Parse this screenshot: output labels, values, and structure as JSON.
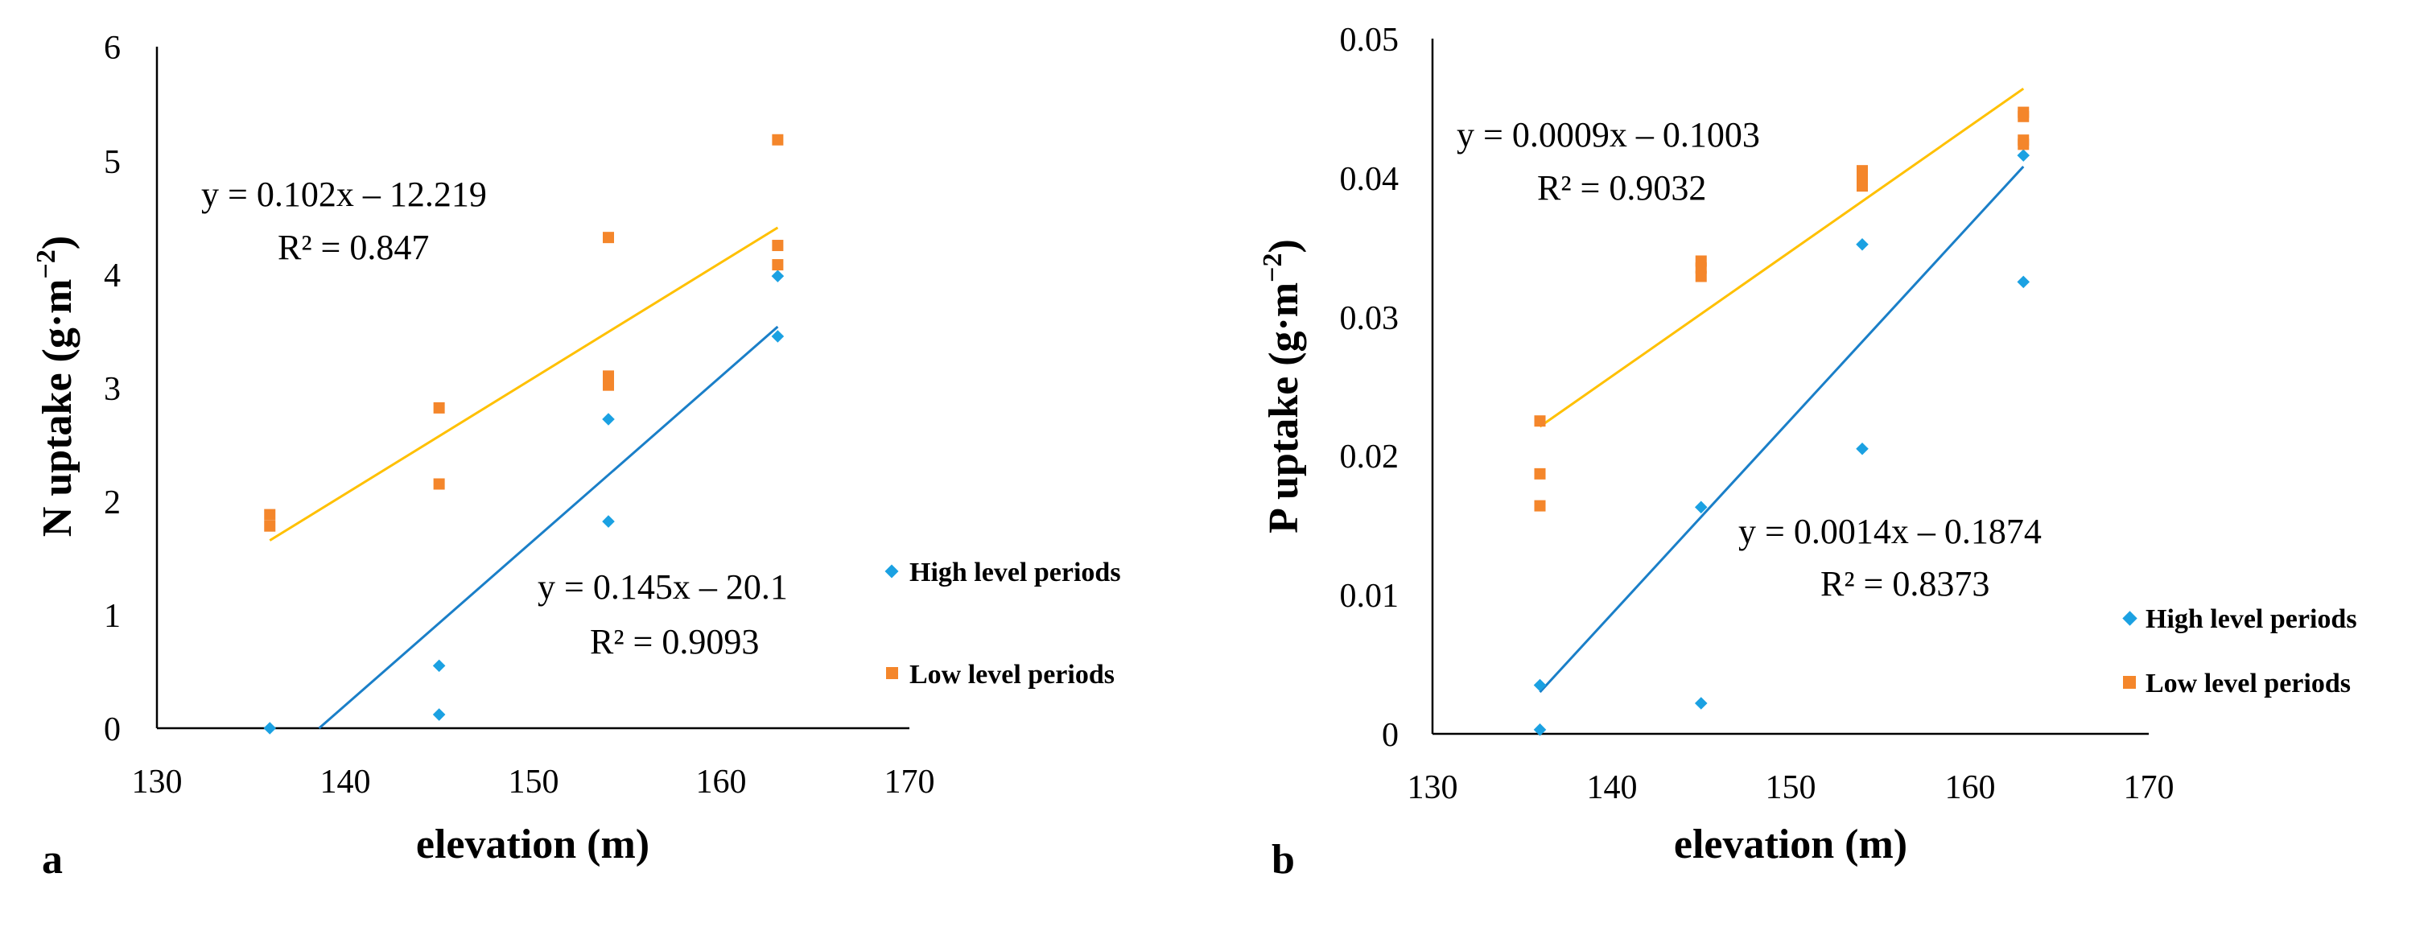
{
  "chart_data": [
    {
      "type": "scatter",
      "panel_label": "a",
      "xlabel": "elevation (m)",
      "ylabel": "N uptake (g·m",
      "ylabel_sup": "−2",
      "ylabel_close": ")",
      "xlim": [
        130,
        170
      ],
      "ylim": [
        0,
        6
      ],
      "xticks": [
        130,
        140,
        150,
        160,
        170
      ],
      "yticks": [
        0,
        1,
        2,
        3,
        4,
        5,
        6
      ],
      "ytick_labels": [
        "0",
        "1",
        "2",
        "3",
        "4",
        "5",
        "6"
      ],
      "legend_position": "right",
      "series": [
        {
          "name": "High level periods",
          "color": "#1ba1e2",
          "marker": "diamond",
          "points": [
            [
              136,
              0.0
            ],
            [
              145,
              0.55
            ],
            [
              145,
              0.12
            ],
            [
              154,
              2.72
            ],
            [
              154,
              1.82
            ],
            [
              163,
              3.98
            ],
            [
              163,
              3.45
            ]
          ],
          "trend": {
            "slope": 0.145,
            "intercept": -20.1,
            "x_from": 136,
            "x_to": 163
          },
          "equation": "y = 0.145x – 20.1",
          "r2": "R² = 0.9093"
        },
        {
          "name": "Low level periods",
          "color": "#f4862b",
          "marker": "square",
          "points": [
            [
              136,
              1.88
            ],
            [
              136,
              1.78
            ],
            [
              145,
              2.82
            ],
            [
              145,
              2.15
            ],
            [
              154,
              4.32
            ],
            [
              154,
              3.1
            ],
            [
              154,
              3.02
            ],
            [
              163,
              5.18
            ],
            [
              163,
              4.25
            ],
            [
              163,
              4.08
            ]
          ],
          "trend": {
            "slope": 0.102,
            "intercept": -12.219,
            "x_from": 136,
            "x_to": 163
          },
          "trend_color": "#ffc000",
          "equation": "y = 0.102x – 12.219",
          "r2": "R² = 0.847"
        }
      ]
    },
    {
      "type": "scatter",
      "panel_label": "b",
      "xlabel": "elevation (m)",
      "ylabel": "P uptake (g·m",
      "ylabel_sup": "−2",
      "ylabel_close": ")",
      "xlim": [
        130,
        170
      ],
      "ylim": [
        0,
        0.05
      ],
      "xticks": [
        130,
        140,
        150,
        160,
        170
      ],
      "yticks": [
        0,
        0.01,
        0.02,
        0.03,
        0.04,
        0.05
      ],
      "ytick_labels": [
        "0",
        "0.01",
        "0.02",
        "0.03",
        "0.04",
        "0.05"
      ],
      "legend_position": "bottom-right",
      "series": [
        {
          "name": "High level periods",
          "color": "#1ba1e2",
          "marker": "diamond",
          "points": [
            [
              136,
              0.0035
            ],
            [
              136,
              0.0003
            ],
            [
              145,
              0.0163
            ],
            [
              145,
              0.0022
            ],
            [
              154,
              0.0352
            ],
            [
              154,
              0.0205
            ],
            [
              163,
              0.0416
            ],
            [
              163,
              0.0325
            ]
          ],
          "trend": {
            "slope": 0.0014,
            "intercept": -0.1874,
            "x_from": 136,
            "x_to": 163
          },
          "equation": "y = 0.0014x – 0.1874",
          "r2": "R² = 0.8373"
        },
        {
          "name": "Low level periods",
          "color": "#f4862b",
          "marker": "square",
          "points": [
            [
              136,
              0.0225
            ],
            [
              136,
              0.0187
            ],
            [
              136,
              0.0164
            ],
            [
              145,
              0.034
            ],
            [
              145,
              0.0335
            ],
            [
              145,
              0.0329
            ],
            [
              154,
              0.0405
            ],
            [
              154,
              0.04
            ],
            [
              154,
              0.0394
            ],
            [
              163,
              0.0447
            ],
            [
              163,
              0.0444
            ],
            [
              163,
              0.0427
            ],
            [
              163,
              0.0424
            ]
          ],
          "trend": {
            "slope": 0.0009,
            "intercept": -0.1003,
            "x_from": 136,
            "x_to": 163
          },
          "trend_color": "#ffc000",
          "equation": "y = 0.0009x – 0.1003",
          "r2": "R² = 0.9032"
        }
      ]
    }
  ]
}
